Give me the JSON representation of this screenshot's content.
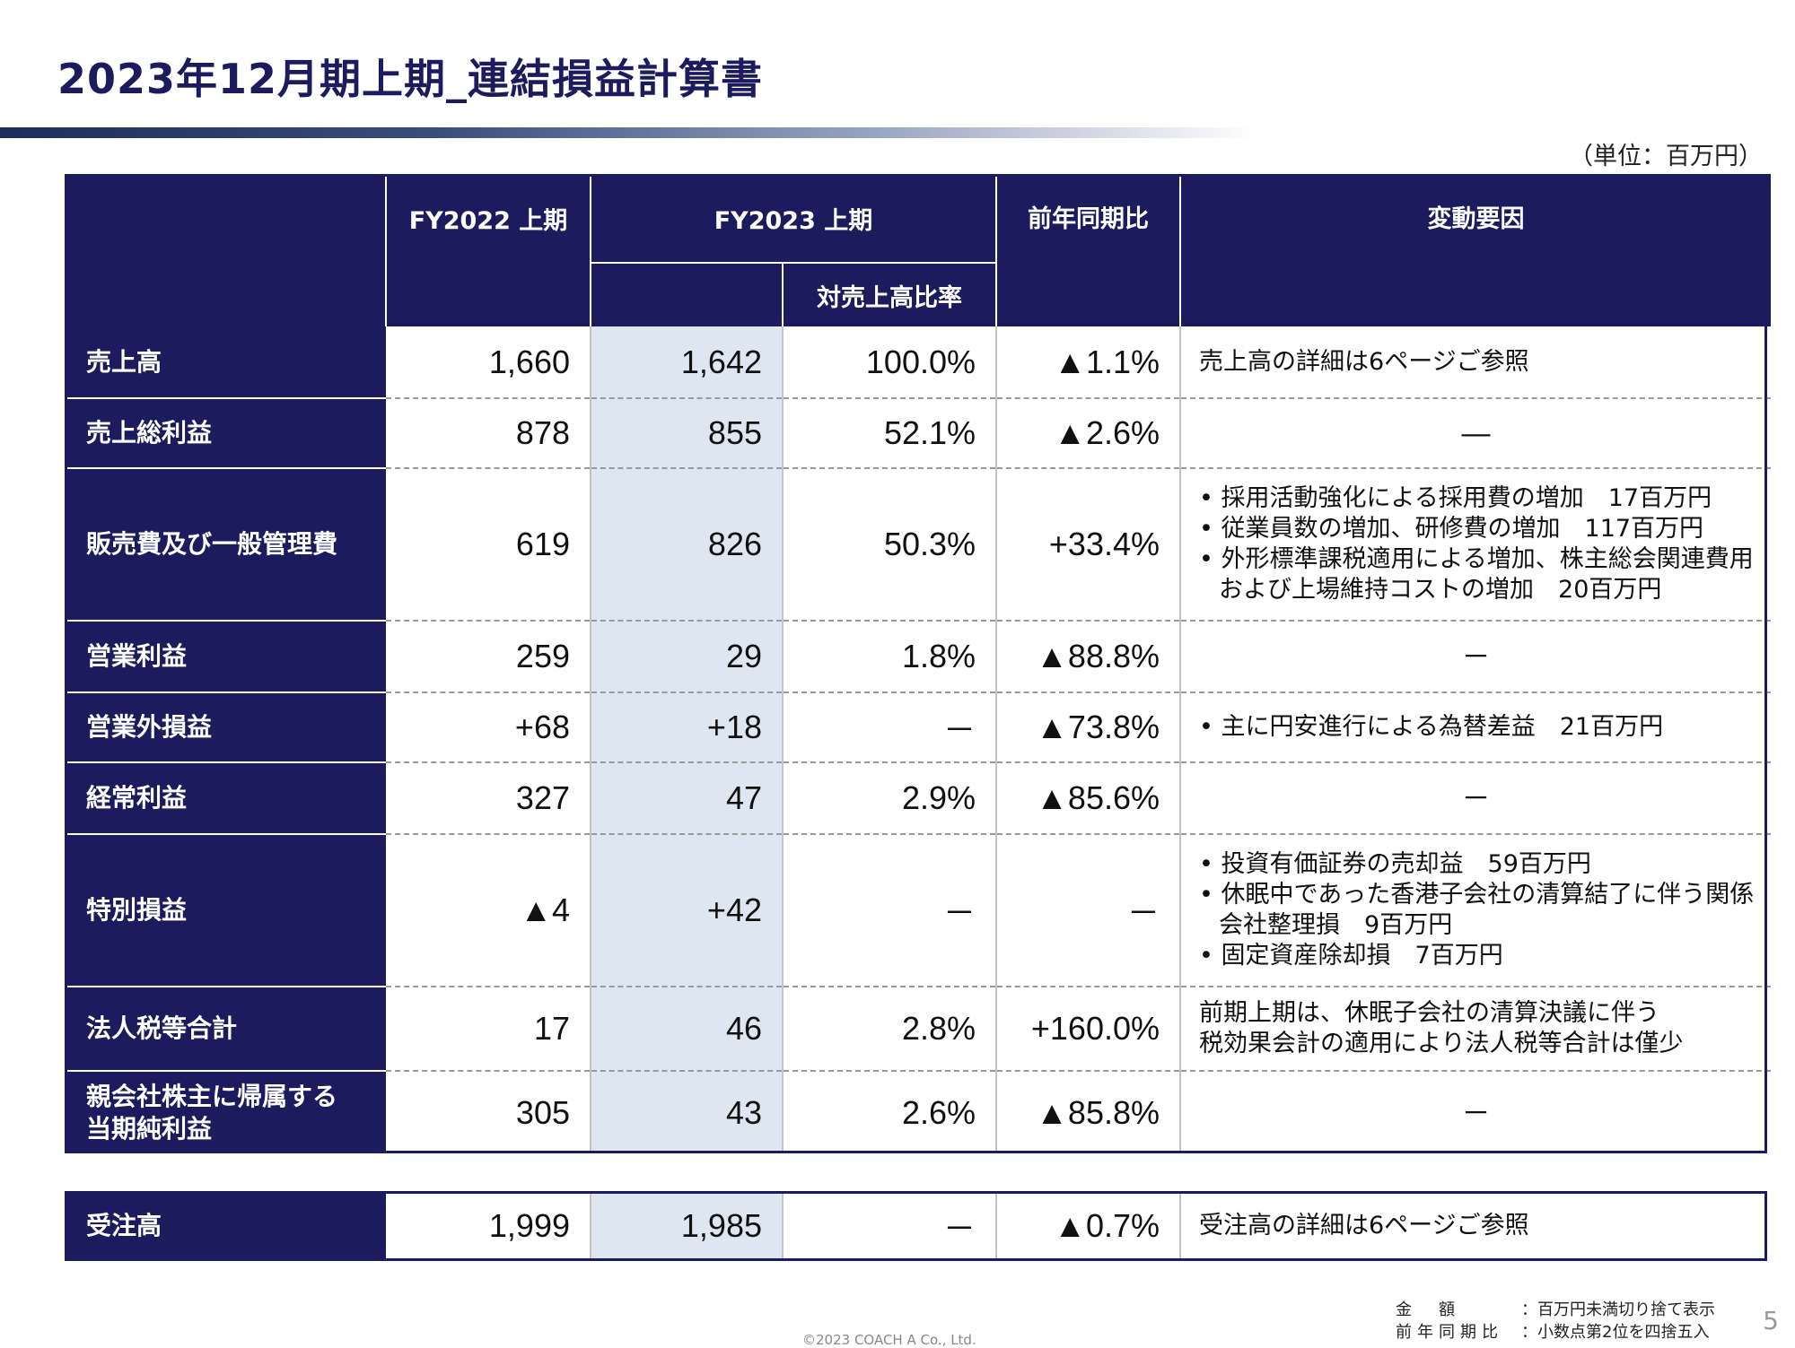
{
  "title": "2023年12月期上期_連結損益計算書",
  "unit": "（単位：百万円）",
  "header": {
    "fy2022": "FY2022 上期",
    "fy2023": "FY2023 上期",
    "ratio": "対売上高比率",
    "yoy": "前年同期比",
    "factors": "変動要因"
  },
  "rows": [
    {
      "label": "売上高",
      "fy2022": "1,660",
      "fy2023": "1,642",
      "ratio": "100.0%",
      "yoy": "▲1.1%",
      "notes": [
        "売上高の詳細は6ページご参照"
      ]
    },
    {
      "label": "売上総利益",
      "fy2022": "878",
      "fy2023": "855",
      "ratio": "52.1%",
      "yoy": "▲2.6%",
      "notes": [
        "―"
      ]
    },
    {
      "label": "販売費及び一般管理費",
      "fy2022": "619",
      "fy2023": "826",
      "ratio": "50.3%",
      "yoy": "+33.4%",
      "notes": [
        "• 採用活動強化による採用費の増加　17百万円",
        "• 従業員数の増加、研修費の増加　117百万円",
        "• 外形標準課税適用による増加、株主総会関連費用および上場維持コストの増加　20百万円"
      ]
    },
    {
      "label": "営業利益",
      "fy2022": "259",
      "fy2023": "29",
      "ratio": "1.8%",
      "yoy": "▲88.8%",
      "notes": [
        "－"
      ]
    },
    {
      "label": "営業外損益",
      "fy2022": "+68",
      "fy2023": "+18",
      "ratio": "－",
      "yoy": "▲73.8%",
      "notes": [
        "• 主に円安進行による為替差益　21百万円"
      ]
    },
    {
      "label": "経常利益",
      "fy2022": "327",
      "fy2023": "47",
      "ratio": "2.9%",
      "yoy": "▲85.6%",
      "notes": [
        "－"
      ]
    },
    {
      "label": "特別損益",
      "fy2022": "▲4",
      "fy2023": "+42",
      "ratio": "－",
      "yoy": "－",
      "notes": [
        "• 投資有価証券の売却益　59百万円",
        "• 休眠中であった香港子会社の清算結了に伴う関係会社整理損　9百万円",
        "• 固定資産除却損　7百万円"
      ]
    },
    {
      "label": "法人税等合計",
      "fy2022": "17",
      "fy2023": "46",
      "ratio": "2.8%",
      "yoy": "+160.0%",
      "notes": [
        "前期上期は、休眠子会社の清算決議に伴う",
        "税効果会計の適用により法人税等合計は僅少"
      ]
    },
    {
      "label": "親会社株主に帰属する当期純利益",
      "label_lines": [
        "親会社株主に帰属する",
        "当期純利益"
      ],
      "fy2022": "305",
      "fy2023": "43",
      "ratio": "2.6%",
      "yoy": "▲85.8%",
      "notes": [
        "－"
      ]
    }
  ],
  "orders": {
    "label": "受注高",
    "fy2022": "1,999",
    "fy2023": "1,985",
    "ratio": "－",
    "yoy": "▲0.7%",
    "notes": [
      "受注高の詳細は6ページご参照"
    ]
  },
  "footnotes": {
    "amount_label": "金　額",
    "amount_text": "：百万円未満切り捨て表示",
    "yoy_label": "前年同期比",
    "yoy_text": "：小数点第2位を四捨五入"
  },
  "page_number": "5",
  "copyright": "©2023  COACH A Co., Ltd.",
  "colors": {
    "navy": "#1b1b5e",
    "fy2023_fill": "#dde6f1"
  }
}
